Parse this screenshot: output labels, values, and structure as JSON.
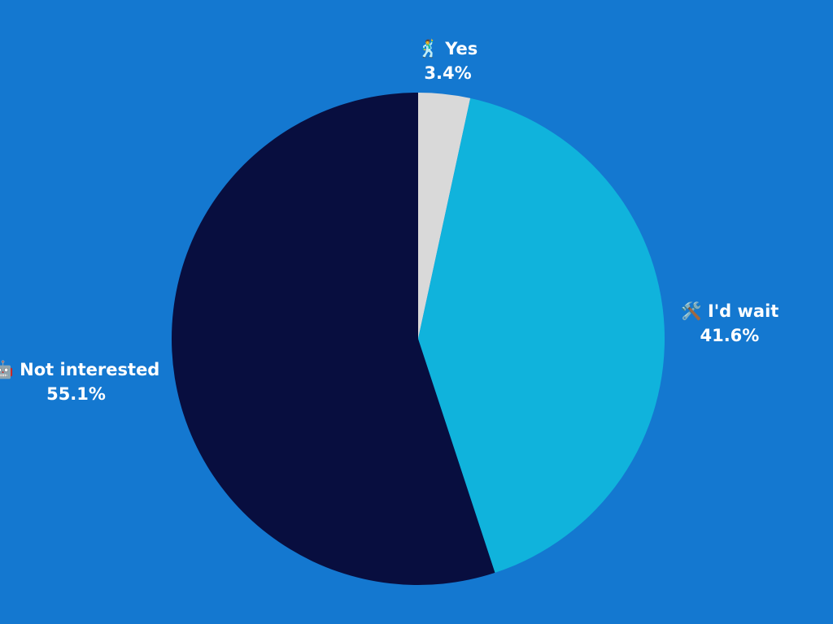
{
  "chart_data": {
    "type": "pie",
    "categories": [
      "🕺 Yes",
      "🛠️ I'd wait",
      "🤖 Not interested"
    ],
    "values": [
      3.4,
      41.6,
      55.1
    ],
    "value_labels": [
      "3.4%",
      "41.6%",
      "55.1%"
    ],
    "colors": [
      "#d9d9d9",
      "#10b3dc",
      "#080e3f"
    ]
  }
}
